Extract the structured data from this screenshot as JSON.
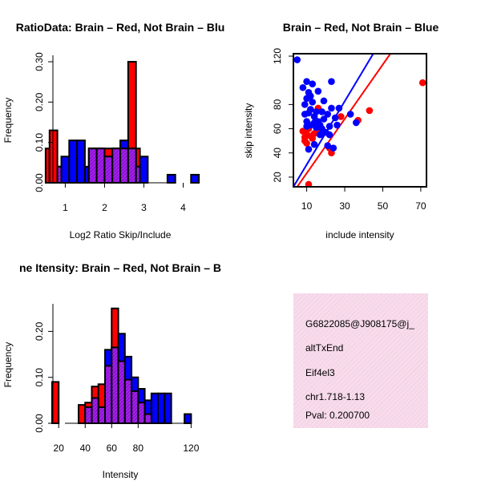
{
  "chart_data": [
    {
      "type": "histogram",
      "title": "RatioData: Brain – Red, Not Brain – Blu",
      "xlabel": "Log2 Ratio Skip/Include",
      "ylabel": "Frequency",
      "xlim": [
        0.4,
        4.5
      ],
      "ylim": [
        0,
        0.31
      ],
      "xticks": [
        1,
        2,
        3,
        4
      ],
      "yticks": [
        0.0,
        0.1,
        0.2,
        0.3
      ],
      "ytick_labels": [
        "0.00",
        "0.10",
        "0.20",
        "0.30"
      ],
      "series": [
        {
          "name": "Brain",
          "color": "#ff0000",
          "bins": [
            [
              0.5,
              0.6,
              0.085
            ],
            [
              0.6,
              0.8,
              0.13
            ],
            [
              0.8,
              0.9,
              0.04
            ],
            [
              1.6,
              1.8,
              0.085
            ],
            [
              1.8,
              2.0,
              0.085
            ],
            [
              2.0,
              2.2,
              0.085
            ],
            [
              2.2,
              2.4,
              0.085
            ],
            [
              2.4,
              2.6,
              0.085
            ],
            [
              2.6,
              2.8,
              0.3
            ],
            [
              2.8,
              2.9,
              0.085
            ]
          ]
        },
        {
          "name": "Not Brain",
          "color": "#0000ff",
          "bins": [
            [
              0.8,
              0.9,
              0.04
            ],
            [
              0.9,
              1.1,
              0.065
            ],
            [
              1.1,
              1.3,
              0.105
            ],
            [
              1.3,
              1.5,
              0.105
            ],
            [
              1.5,
              1.6,
              0.04
            ],
            [
              1.6,
              1.8,
              0.085
            ],
            [
              1.8,
              2.0,
              0.085
            ],
            [
              2.0,
              2.2,
              0.065
            ],
            [
              2.2,
              2.4,
              0.085
            ],
            [
              2.4,
              2.6,
              0.105
            ],
            [
              2.6,
              2.8,
              0.085
            ],
            [
              2.8,
              2.9,
              0.04
            ],
            [
              2.9,
              3.1,
              0.065
            ],
            [
              3.6,
              3.8,
              0.02
            ],
            [
              4.2,
              4.4,
              0.02
            ]
          ]
        }
      ]
    },
    {
      "type": "scatter",
      "title": "Brain – Red, Not Brain – Blue",
      "xlabel": "include intensity",
      "ylabel": "skip intensity",
      "xlim": [
        3,
        73
      ],
      "ylim": [
        12,
        122
      ],
      "xticks": [
        10,
        30,
        50,
        70
      ],
      "yticks": [
        20,
        40,
        60,
        80,
        120
      ],
      "series": [
        {
          "name": "Brain",
          "color": "#ff0000",
          "points": [
            [
              8,
              58
            ],
            [
              9,
              53
            ],
            [
              9,
              50
            ],
            [
              10,
              55
            ],
            [
              10,
              48
            ],
            [
              11,
              60
            ],
            [
              11,
              14
            ],
            [
              12,
              54
            ],
            [
              13,
              52
            ],
            [
              14,
              56
            ],
            [
              15,
              57
            ],
            [
              16,
              77
            ],
            [
              22,
              44
            ],
            [
              23,
              40
            ],
            [
              28,
              70
            ],
            [
              37,
              67
            ],
            [
              43,
              75
            ],
            [
              71,
              98
            ]
          ],
          "fit_line": [
            [
              5,
              12
            ],
            [
              54,
              122
            ]
          ]
        },
        {
          "name": "Not Brain",
          "color": "#0000ff",
          "points": [
            [
              5,
              117
            ],
            [
              8,
              94
            ],
            [
              9,
              80
            ],
            [
              9,
              72
            ],
            [
              10,
              99
            ],
            [
              10,
              85
            ],
            [
              10,
              66
            ],
            [
              10,
              62
            ],
            [
              11,
              90
            ],
            [
              11,
              73
            ],
            [
              11,
              43
            ],
            [
              12,
              87
            ],
            [
              12,
              76
            ],
            [
              12,
              63
            ],
            [
              13,
              97
            ],
            [
              13,
              82
            ],
            [
              14,
              70
            ],
            [
              14,
              65
            ],
            [
              14,
              47
            ],
            [
              15,
              74
            ],
            [
              15,
              61
            ],
            [
              16,
              91
            ],
            [
              16,
              66
            ],
            [
              17,
              55
            ],
            [
              17,
              63
            ],
            [
              18,
              74
            ],
            [
              18,
              60
            ],
            [
              19,
              83
            ],
            [
              19,
              68
            ],
            [
              20,
              57
            ],
            [
              21,
              72
            ],
            [
              21,
              46
            ],
            [
              22,
              55
            ],
            [
              22,
              62
            ],
            [
              23,
              99
            ],
            [
              23,
              77
            ],
            [
              24,
              44
            ],
            [
              25,
              69
            ],
            [
              26,
              63
            ],
            [
              27,
              77
            ],
            [
              33,
              72
            ],
            [
              36,
              65
            ]
          ],
          "fit_line": [
            [
              3,
              12
            ],
            [
              45,
              122
            ]
          ]
        }
      ]
    },
    {
      "type": "histogram",
      "title": "ne Itensity: Brain – Red, Not Brain – B",
      "xlabel": "Intensity",
      "ylabel": "Frequency",
      "xlim": [
        12,
        124
      ],
      "ylim": [
        0,
        0.26
      ],
      "xticks": [
        20,
        40,
        60,
        80,
        120
      ],
      "yticks": [
        0.0,
        0.1,
        0.2
      ],
      "ytick_labels": [
        "0.00",
        "0.10",
        "0.20"
      ],
      "series": [
        {
          "name": "Brain",
          "color": "#ff0000",
          "bins": [
            [
              15,
              20,
              0.09
            ],
            [
              35,
              40,
              0.04
            ],
            [
              40,
              45,
              0.045
            ],
            [
              45,
              50,
              0.08
            ],
            [
              50,
              55,
              0.085
            ],
            [
              55,
              60,
              0.125
            ],
            [
              60,
              65,
              0.25
            ],
            [
              65,
              70,
              0.135
            ],
            [
              70,
              75,
              0.095
            ],
            [
              75,
              80,
              0.07
            ],
            [
              80,
              85,
              0.045
            ],
            [
              85,
              90,
              0.02
            ]
          ]
        },
        {
          "name": "Not Brain",
          "color": "#0000ff",
          "bins": [
            [
              40,
              45,
              0.035
            ],
            [
              45,
              50,
              0.055
            ],
            [
              50,
              55,
              0.035
            ],
            [
              55,
              60,
              0.16
            ],
            [
              60,
              65,
              0.165
            ],
            [
              65,
              70,
              0.195
            ],
            [
              70,
              75,
              0.145
            ],
            [
              75,
              80,
              0.1
            ],
            [
              80,
              85,
              0.075
            ],
            [
              85,
              90,
              0.05
            ],
            [
              90,
              95,
              0.065
            ],
            [
              95,
              100,
              0.065
            ],
            [
              100,
              105,
              0.065
            ],
            [
              115,
              120,
              0.02
            ]
          ]
        }
      ]
    }
  ],
  "info": {
    "id": "G6822085@J908175@j_",
    "event": "altTxEnd",
    "gene": "Eif4el3",
    "location": "chr1.718-1.13",
    "pval": "Pval: 0.200700",
    "pval_color": "#b00000",
    "bg_color": "#f7dcec"
  }
}
